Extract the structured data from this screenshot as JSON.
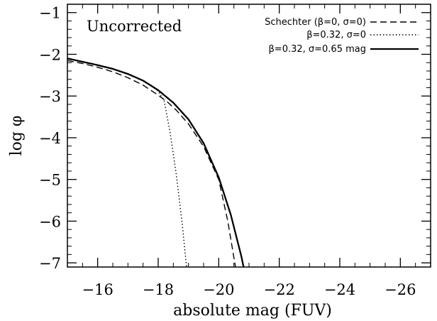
{
  "chart_data": {
    "type": "line",
    "xlabel": "absolute mag (FUV)",
    "ylabel": "log φ",
    "annotation": "Uncorrected",
    "xlim": [
      -15,
      -27
    ],
    "ylim": [
      -7.1,
      -0.8
    ],
    "x_ticks": [
      -16,
      -18,
      -20,
      -22,
      -24,
      -26
    ],
    "y_ticks": [
      -1,
      -2,
      -3,
      -4,
      -5,
      -6,
      -7
    ],
    "x_tick_labels": [
      "−16",
      "−18",
      "−20",
      "−22",
      "−24",
      "−26"
    ],
    "y_tick_labels": [
      "−1",
      "−2",
      "−3",
      "−4",
      "−5",
      "−6",
      "−7"
    ],
    "legend_position": "top-right",
    "series": [
      {
        "name": "Schechter (β=0, σ=0)",
        "style": "dashed",
        "x": [
          -15.0,
          -15.5,
          -16.0,
          -16.5,
          -17.0,
          -17.5,
          -18.0,
          -18.3,
          -18.6,
          -19.0,
          -19.5,
          -20.0,
          -20.3,
          -20.6
        ],
        "y": [
          -2.15,
          -2.22,
          -2.31,
          -2.42,
          -2.56,
          -2.74,
          -2.98,
          -3.14,
          -3.34,
          -3.67,
          -4.21,
          -5.0,
          -6.0,
          -7.3
        ]
      },
      {
        "name": "β=0.32, σ=0",
        "style": "dotted",
        "x": [
          -15.0,
          -15.5,
          -16.0,
          -16.5,
          -17.0,
          -17.5,
          -17.8,
          -18.0,
          -18.2,
          -18.4,
          -18.6,
          -18.8,
          -18.95
        ],
        "y": [
          -2.12,
          -2.17,
          -2.25,
          -2.34,
          -2.48,
          -2.64,
          -2.77,
          -2.88,
          -3.12,
          -3.9,
          -4.9,
          -6.1,
          -7.2
        ]
      },
      {
        "name": "β=0.32, σ=0.65 mag",
        "style": "solid",
        "x": [
          -15.0,
          -15.5,
          -16.0,
          -16.5,
          -17.0,
          -17.5,
          -18.0,
          -18.5,
          -19.0,
          -19.5,
          -20.0,
          -20.4,
          -20.75,
          -20.85
        ],
        "y": [
          -2.1,
          -2.18,
          -2.26,
          -2.35,
          -2.47,
          -2.63,
          -2.86,
          -3.16,
          -3.56,
          -4.13,
          -4.95,
          -5.85,
          -6.85,
          -7.2
        ]
      }
    ]
  }
}
